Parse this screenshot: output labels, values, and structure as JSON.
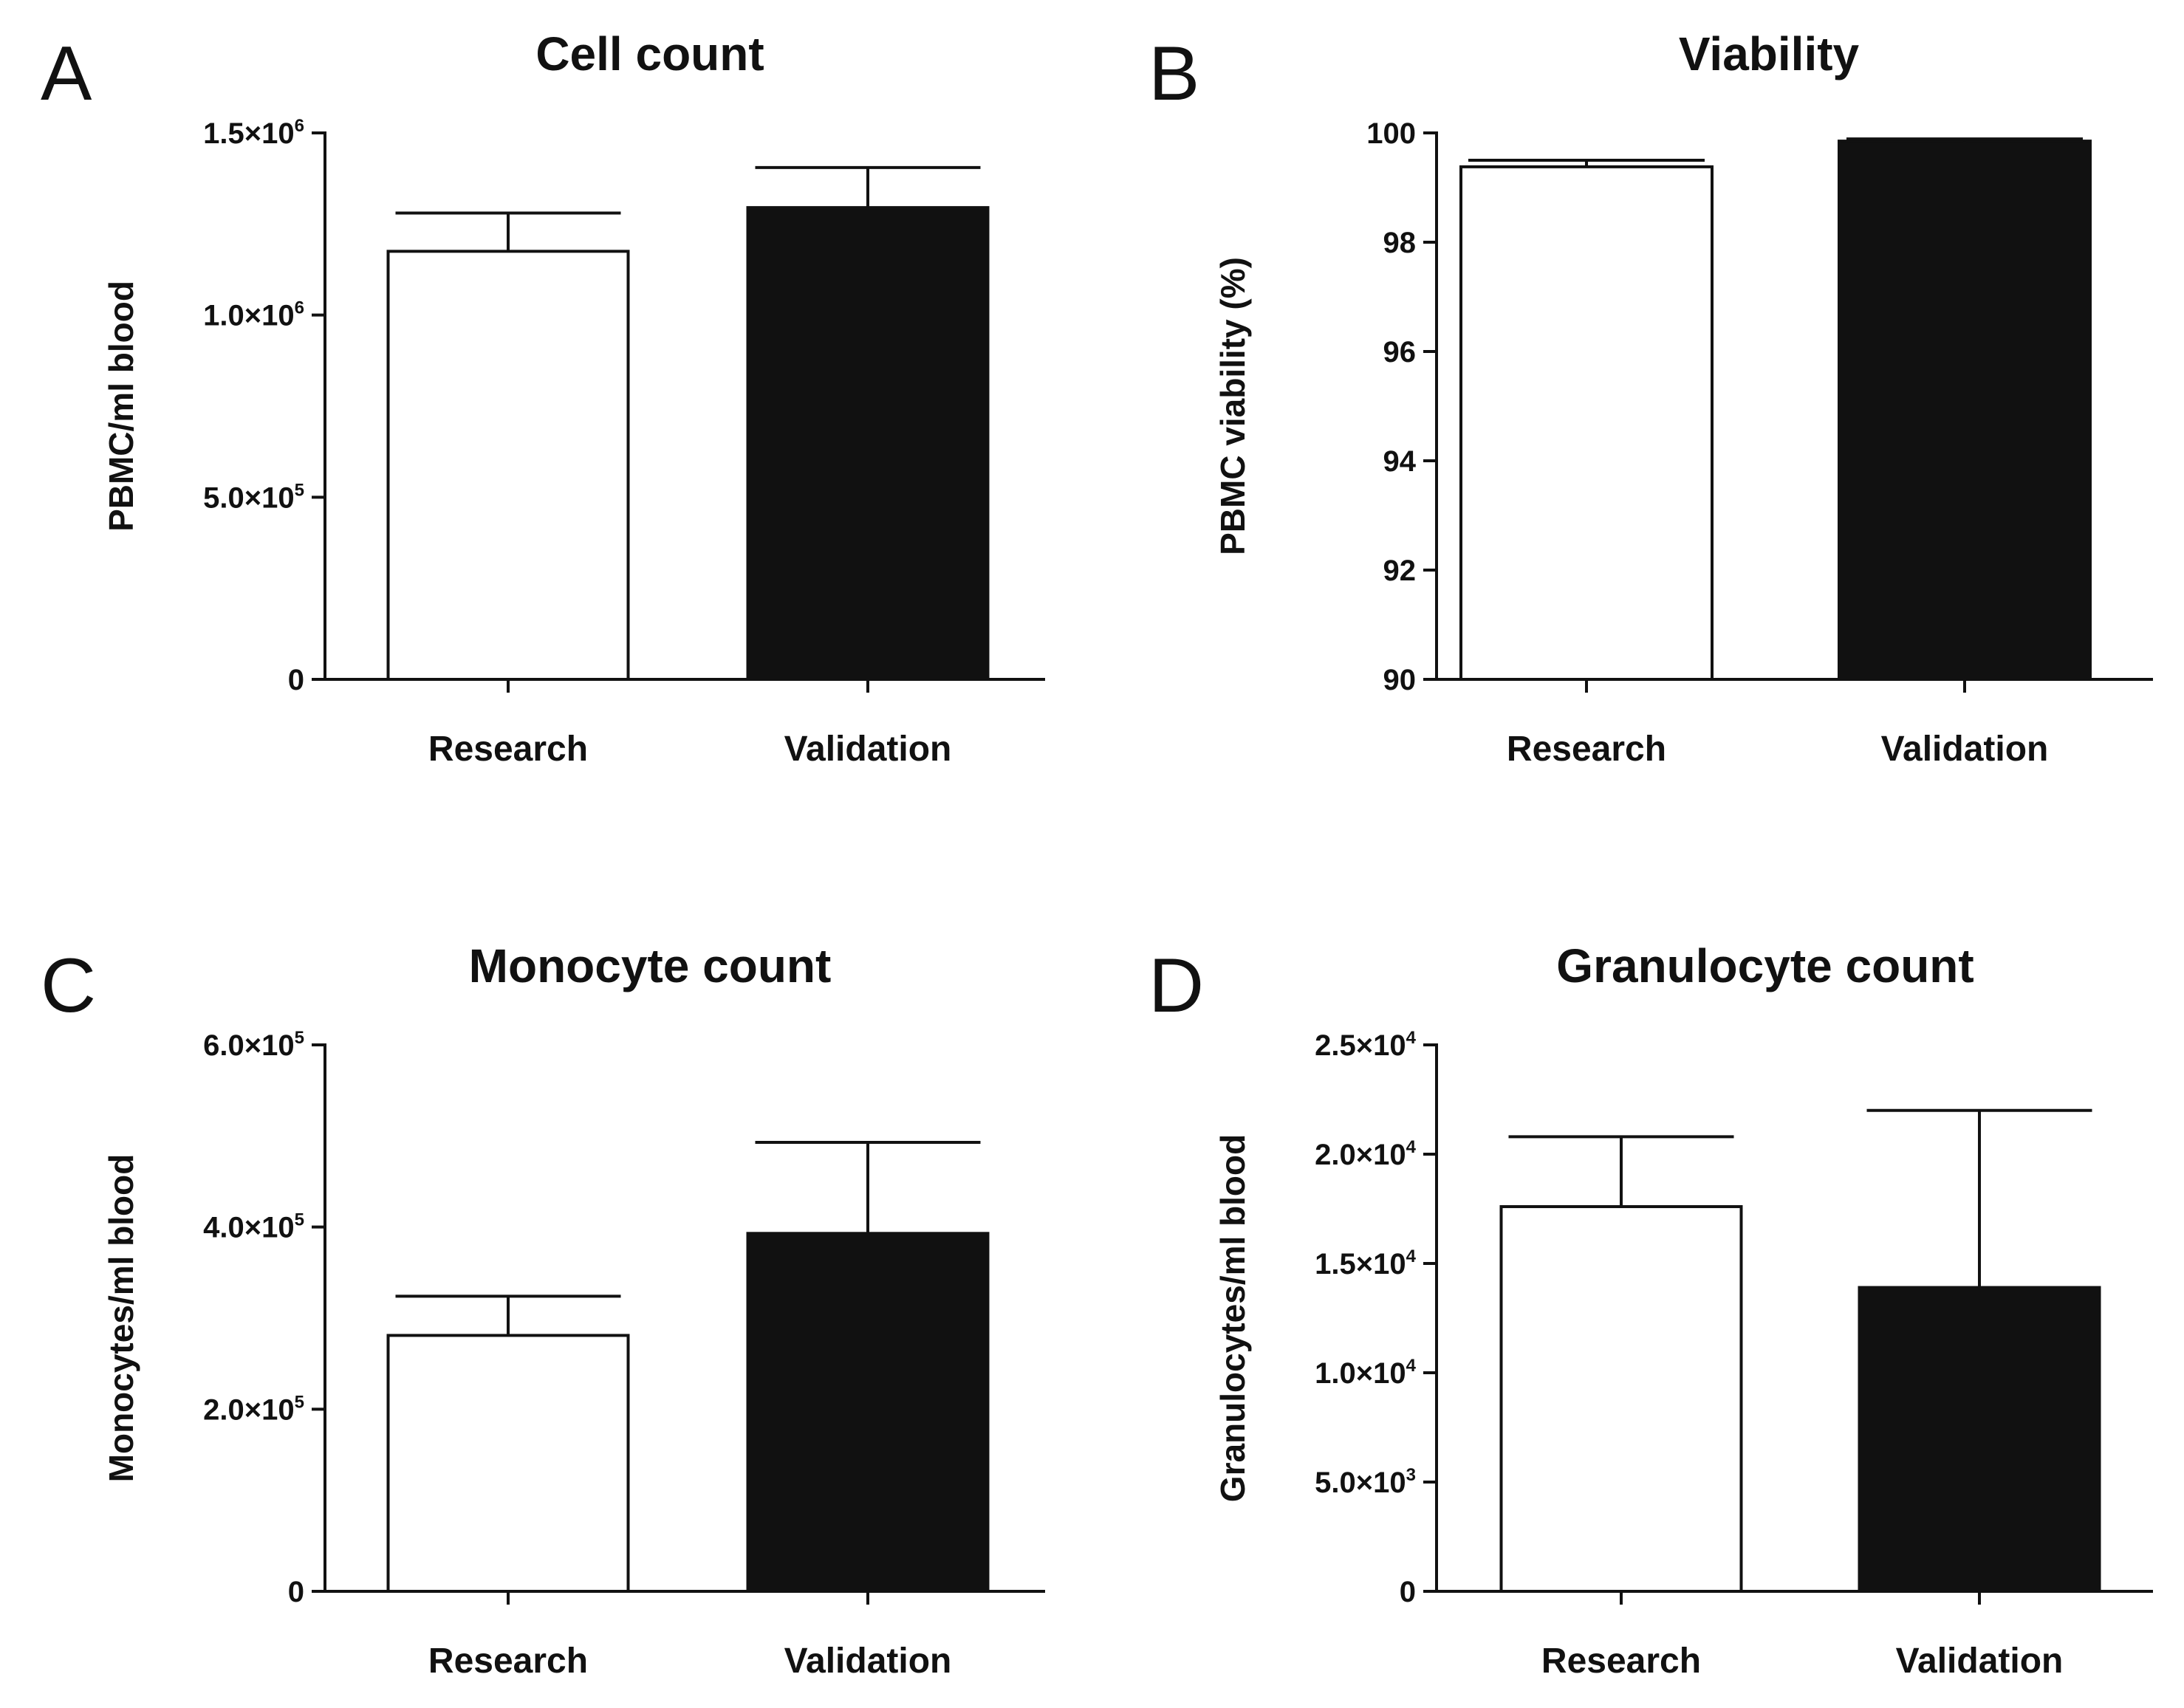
{
  "chart_data": [
    {
      "panel": "A",
      "type": "bar",
      "title": "Cell count",
      "xlabel": "",
      "ylabel": "PBMC/ml blood",
      "categories": [
        "Research",
        "Validation"
      ],
      "values": [
        1175000,
        1295000
      ],
      "errors": [
        105000,
        110000
      ],
      "bar_fills": [
        "#ffffff",
        "#111111"
      ],
      "ylim": [
        0,
        1500000
      ],
      "yticks": [
        {
          "value": 0,
          "mantissa": "0",
          "exponent": ""
        },
        {
          "value": 500000,
          "mantissa": "5.0×10",
          "exponent": "5"
        },
        {
          "value": 1000000,
          "mantissa": "1.0×10",
          "exponent": "6"
        },
        {
          "value": 1500000,
          "mantissa": "1.5×10",
          "exponent": "6"
        }
      ],
      "grid": false
    },
    {
      "panel": "B",
      "type": "bar",
      "title": "Viability",
      "xlabel": "",
      "ylabel": "PBMC viability (%)",
      "categories": [
        "Research",
        "Validation"
      ],
      "values": [
        99.38,
        99.85
      ],
      "errors": [
        0.12,
        0.04
      ],
      "bar_fills": [
        "#ffffff",
        "#111111"
      ],
      "ylim": [
        90,
        100
      ],
      "yticks": [
        {
          "value": 90,
          "mantissa": "90",
          "exponent": ""
        },
        {
          "value": 92,
          "mantissa": "92",
          "exponent": ""
        },
        {
          "value": 94,
          "mantissa": "94",
          "exponent": ""
        },
        {
          "value": 96,
          "mantissa": "96",
          "exponent": ""
        },
        {
          "value": 98,
          "mantissa": "98",
          "exponent": ""
        },
        {
          "value": 100,
          "mantissa": "100",
          "exponent": ""
        }
      ],
      "grid": false
    },
    {
      "panel": "C",
      "type": "bar",
      "title": "Monocyte count",
      "xlabel": "",
      "ylabel": "Monocytes/ml blood",
      "categories": [
        "Research",
        "Validation"
      ],
      "values": [
        281000,
        393000
      ],
      "errors": [
        43000,
        100000
      ],
      "bar_fills": [
        "#ffffff",
        "#111111"
      ],
      "ylim": [
        0,
        600000
      ],
      "yticks": [
        {
          "value": 0,
          "mantissa": "0",
          "exponent": ""
        },
        {
          "value": 200000,
          "mantissa": "2.0×10",
          "exponent": "5"
        },
        {
          "value": 400000,
          "mantissa": "4.0×10",
          "exponent": "5"
        },
        {
          "value": 600000,
          "mantissa": "6.0×10",
          "exponent": "5"
        }
      ],
      "grid": false
    },
    {
      "panel": "D",
      "type": "bar",
      "title": "Granulocyte count",
      "xlabel": "",
      "ylabel": "Granulocytes/ml blood",
      "categories": [
        "Research",
        "Validation"
      ],
      "values": [
        17600,
        13900
      ],
      "errors": [
        3200,
        8100
      ],
      "bar_fills": [
        "#ffffff",
        "#111111"
      ],
      "ylim": [
        0,
        25000
      ],
      "yticks": [
        {
          "value": 0,
          "mantissa": "0",
          "exponent": ""
        },
        {
          "value": 5000,
          "mantissa": "5.0×10",
          "exponent": "3"
        },
        {
          "value": 10000,
          "mantissa": "1.0×10",
          "exponent": "4"
        },
        {
          "value": 15000,
          "mantissa": "1.5×10",
          "exponent": "4"
        },
        {
          "value": 20000,
          "mantissa": "2.0×10",
          "exponent": "4"
        },
        {
          "value": 25000,
          "mantissa": "2.5×10",
          "exponent": "4"
        }
      ],
      "grid": false
    }
  ]
}
